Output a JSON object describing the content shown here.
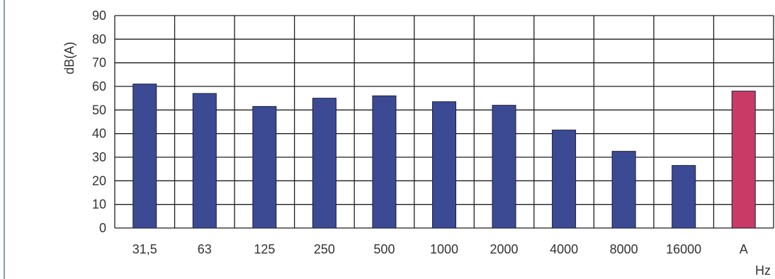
{
  "chart_data": {
    "type": "bar",
    "title": "",
    "ylabel": "dB(A)",
    "xlabel": "Hz",
    "ylim": [
      0,
      90
    ],
    "yticks": [
      "0",
      "10",
      "20",
      "30",
      "40",
      "50",
      "60",
      "70",
      "80",
      "90"
    ],
    "categories": [
      "31,5",
      "63",
      "125",
      "250",
      "500",
      "1000",
      "2000",
      "4000",
      "8000",
      "16000",
      "A"
    ],
    "values": [
      61,
      57,
      51.5,
      55,
      56,
      53.5,
      52,
      41.5,
      32.5,
      26.5,
      58
    ],
    "bar_colors": [
      "#3c4a94",
      "#3c4a94",
      "#3c4a94",
      "#3c4a94",
      "#3c4a94",
      "#3c4a94",
      "#3c4a94",
      "#3c4a94",
      "#3c4a94",
      "#3c4a94",
      "#c93a66"
    ],
    "grid": true,
    "legend": "none"
  }
}
